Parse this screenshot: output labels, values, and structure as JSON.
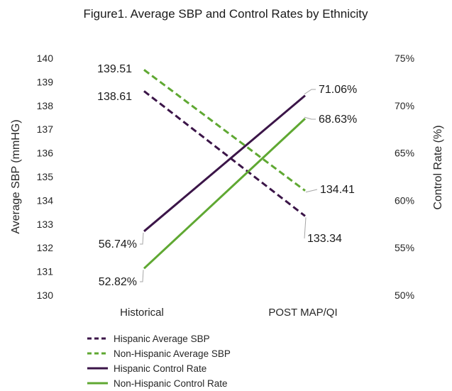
{
  "chart_data": {
    "type": "line",
    "title": "Figure1. Average SBP and Control Rates by Ethnicity",
    "categories": [
      "Historical",
      "POST MAP/QI"
    ],
    "ylabel": "Average SBP (mmHG)",
    "y2label": "Control Rate (%)",
    "ylim": [
      130,
      140
    ],
    "y2lim": [
      50,
      75
    ],
    "yticks": [
      "130",
      "131",
      "132",
      "133",
      "134",
      "135",
      "136",
      "137",
      "138",
      "139",
      "140"
    ],
    "y2ticks": [
      "50%",
      "55%",
      "60%",
      "65%",
      "70%",
      "75%"
    ],
    "legend_position": "bottom",
    "grid": false,
    "series": [
      {
        "name": "Hispanic Average SBP",
        "axis": "left",
        "values": [
          138.61,
          133.34
        ],
        "labels": [
          "138.61",
          "133.34"
        ],
        "color": "#3b1548",
        "dash": true
      },
      {
        "name": "Non-Hispanic Average SBP",
        "axis": "left",
        "values": [
          139.51,
          134.41
        ],
        "labels": [
          "139.51",
          "134.41"
        ],
        "color": "#5fa832",
        "dash": true
      },
      {
        "name": "Hispanic Control Rate",
        "axis": "right",
        "values": [
          56.74,
          71.06
        ],
        "labels": [
          "56.74%",
          "71.06%"
        ],
        "color": "#3b1548",
        "dash": false
      },
      {
        "name": "Non-Hispanic Control Rate",
        "axis": "right",
        "values": [
          52.82,
          68.63
        ],
        "labels": [
          "52.82%",
          "68.63%"
        ],
        "color": "#5fa832",
        "dash": false
      }
    ]
  }
}
